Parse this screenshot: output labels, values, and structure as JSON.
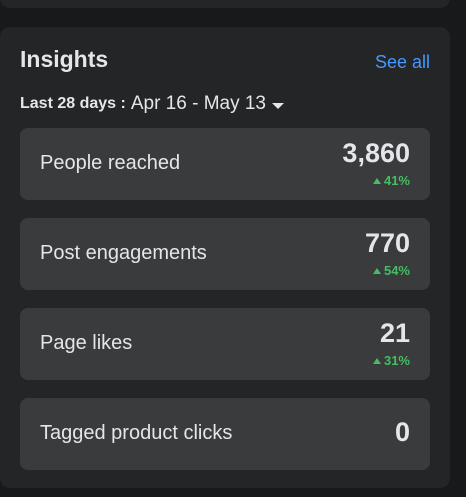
{
  "header": {
    "title": "Insights",
    "link": "See all"
  },
  "date_range": {
    "label": "Last 28 days :",
    "value": "Apr 16 - May 13"
  },
  "metrics": [
    {
      "label": "People reached",
      "value": "3,860",
      "change": "41%"
    },
    {
      "label": "Post engagements",
      "value": "770",
      "change": "54%"
    },
    {
      "label": "Page likes",
      "value": "21",
      "change": "31%"
    },
    {
      "label": "Tagged product clicks",
      "value": "0"
    }
  ]
}
